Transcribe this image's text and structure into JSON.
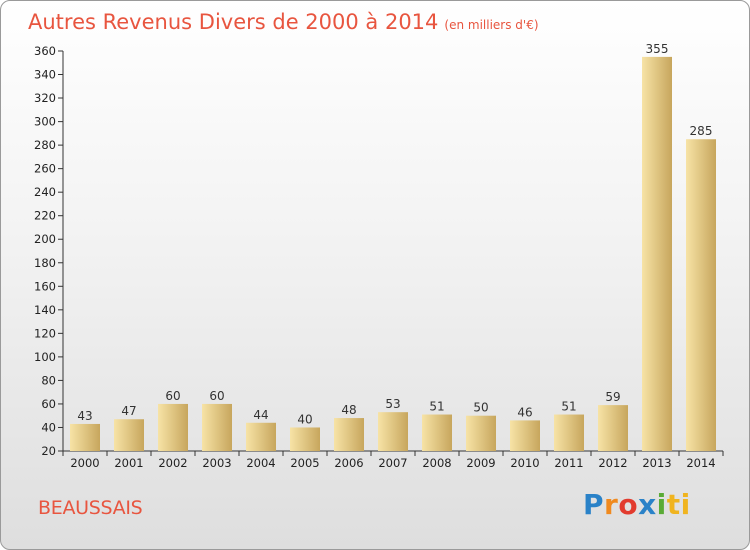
{
  "header": {
    "title": "Autres Revenus Divers de 2000 à 2014",
    "subtitle": "(en milliers d'€)"
  },
  "footer": {
    "town": "BEAUSSAIS",
    "logo": [
      "P",
      "r",
      "o",
      "x",
      "i",
      "ti"
    ]
  },
  "colors": {
    "title": "#e8553f",
    "bar_light": "#f7e3a6",
    "bar_dark": "#c7a65d"
  },
  "chart_data": {
    "type": "bar",
    "categories": [
      "2000",
      "2001",
      "2002",
      "2003",
      "2004",
      "2005",
      "2006",
      "2007",
      "2008",
      "2009",
      "2010",
      "2011",
      "2012",
      "2013",
      "2014"
    ],
    "values": [
      43,
      47,
      60,
      60,
      44,
      40,
      48,
      53,
      51,
      50,
      46,
      51,
      59,
      355,
      285
    ],
    "title": "Autres Revenus Divers de 2000 à 2014",
    "ylim": [
      20,
      360
    ],
    "yticks": [
      20,
      40,
      60,
      80,
      100,
      120,
      140,
      160,
      180,
      200,
      220,
      240,
      260,
      280,
      300,
      320,
      340,
      360
    ],
    "grid": false,
    "data_labels": true
  }
}
